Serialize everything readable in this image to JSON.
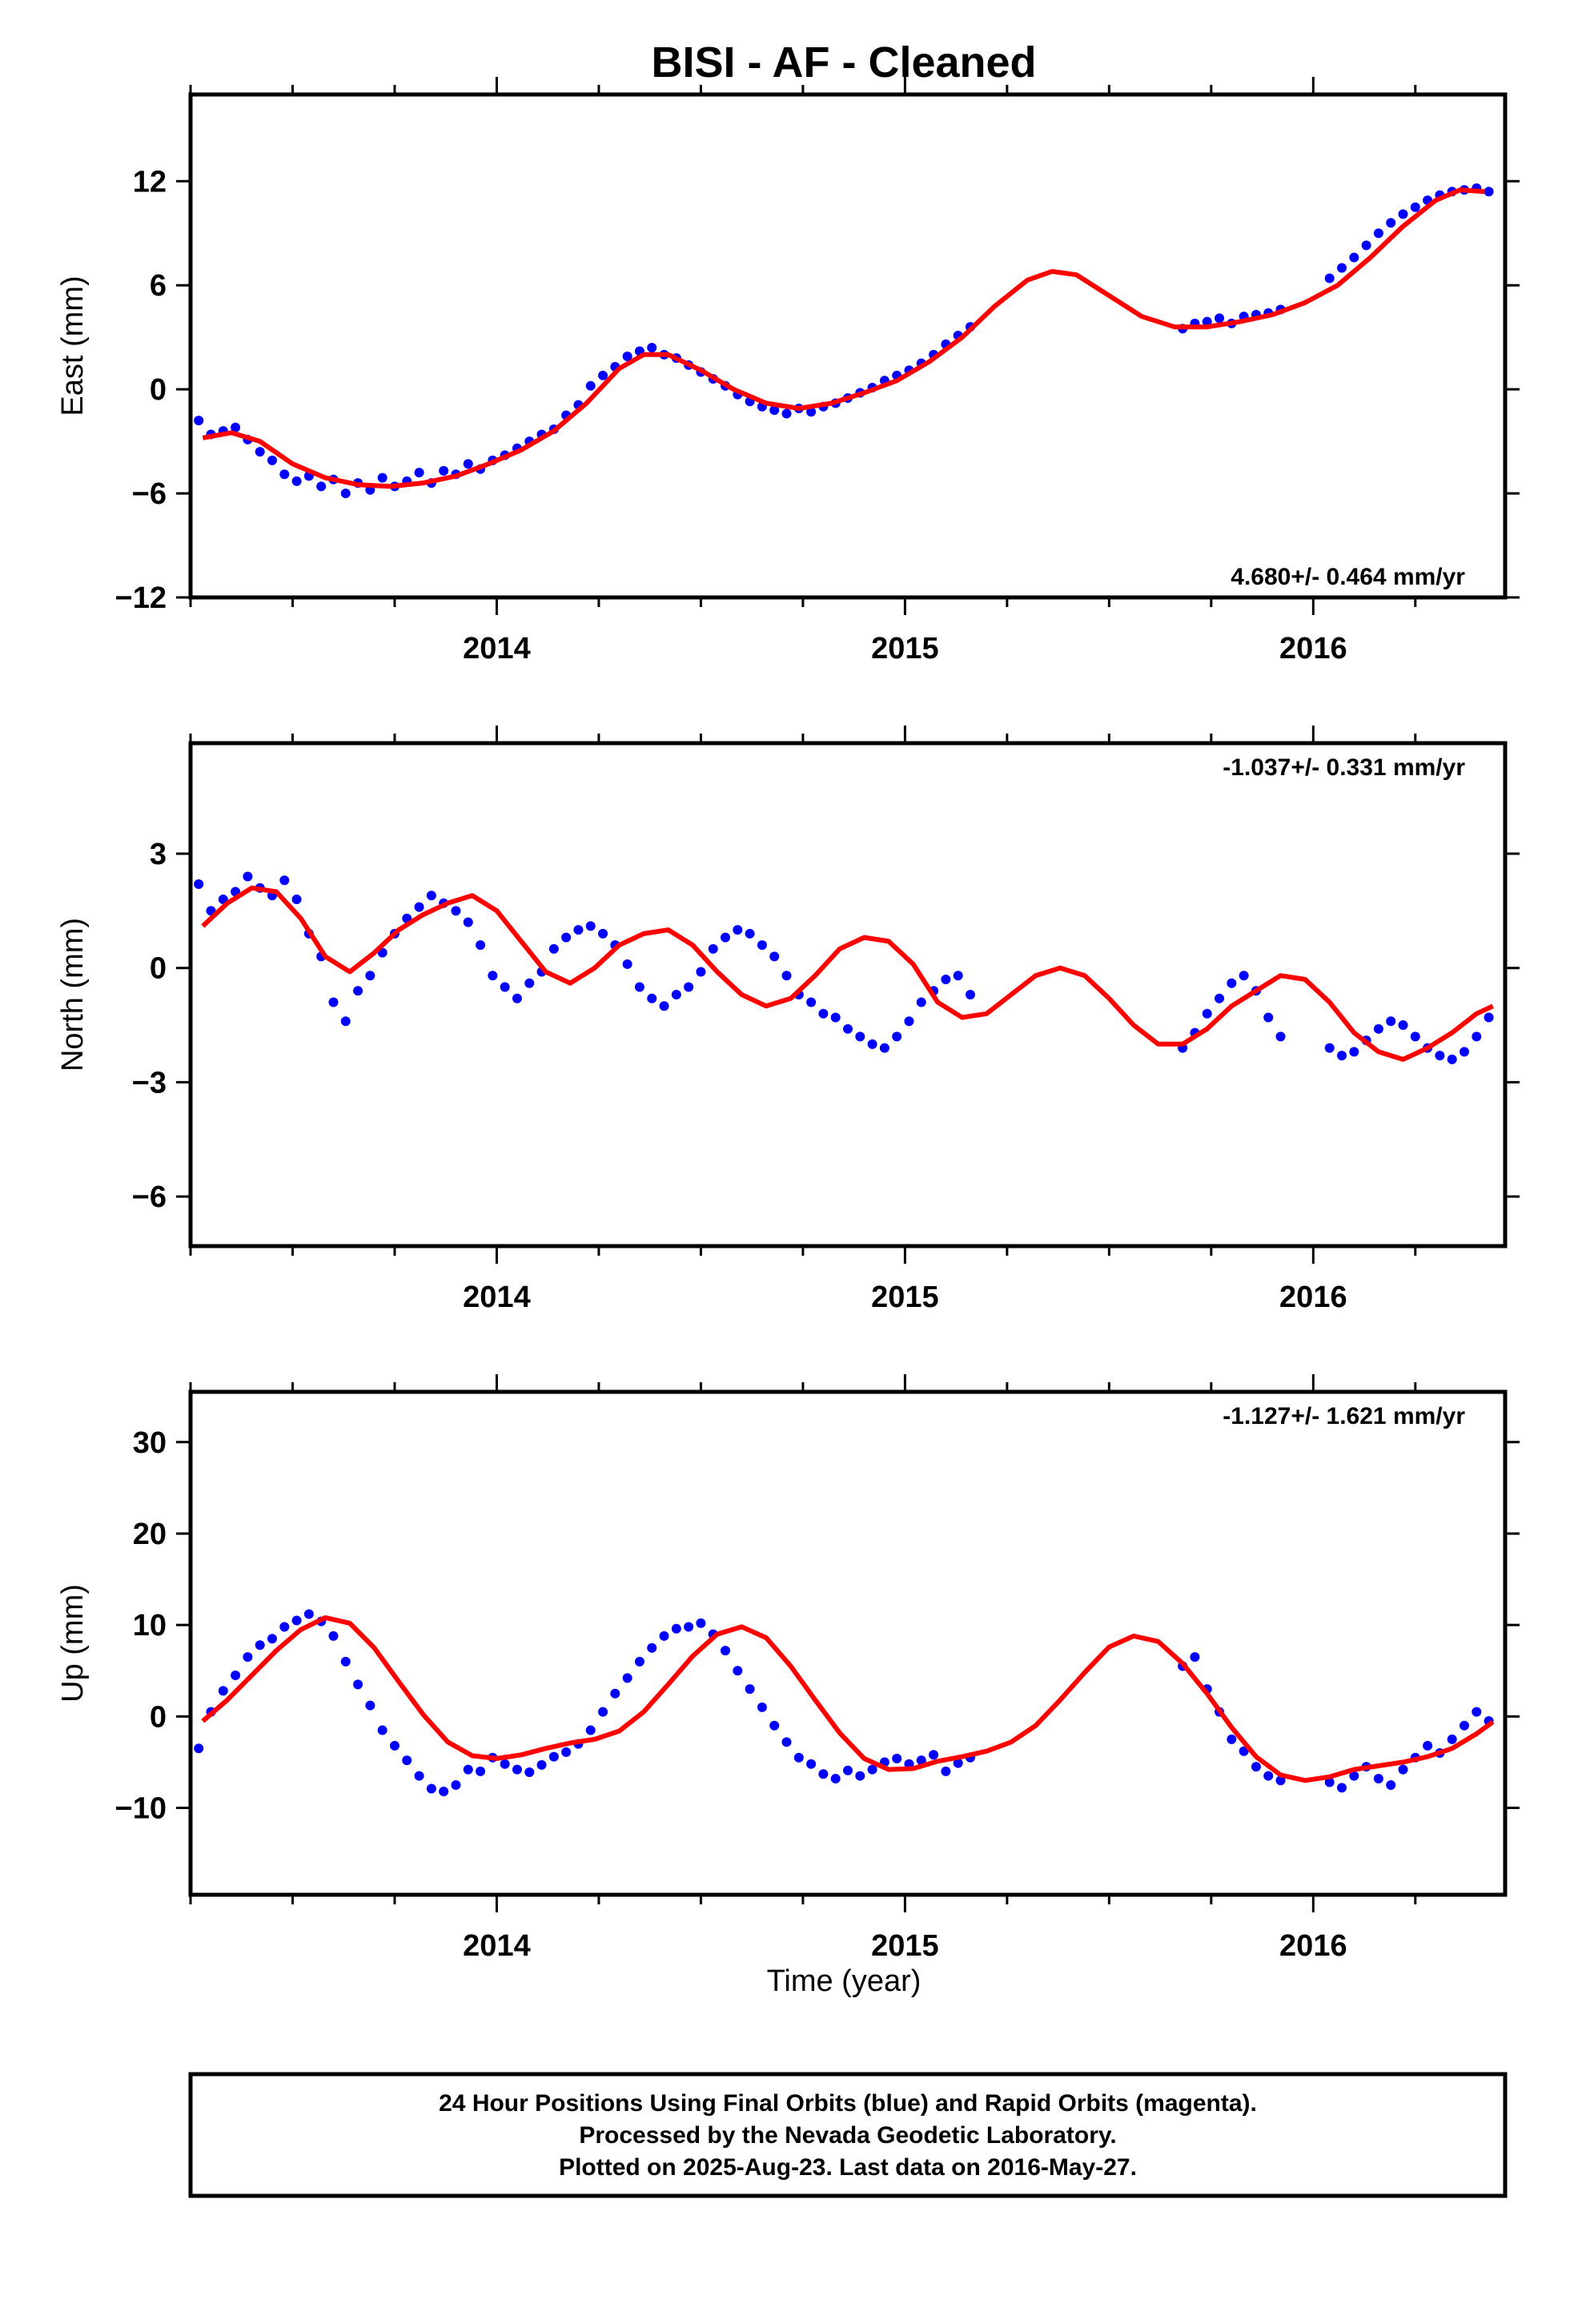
{
  "title": "BISI  - AF - Cleaned",
  "xlabel": "Time (year)",
  "colors": {
    "data": "#0000ff",
    "model": "#ff0000",
    "frame": "#000000"
  },
  "footer": {
    "line1": "24 Hour Positions Using Final Orbits (blue) and Rapid Orbits (magenta).",
    "line2": "Processed by the Nevada Geodetic Laboratory.",
    "line3": "Plotted on 2025-Aug-23. Last data on 2016-May-27."
  },
  "chart_data": [
    {
      "type": "scatter",
      "ylabel": "East (mm)",
      "rate_label": "4.680+/- 0.464 mm/yr",
      "rate_position": "bottom-right",
      "xlim": [
        2013.25,
        2016.47
      ],
      "ylim": [
        -12,
        17
      ],
      "xticks": [
        2014,
        2015,
        2016
      ],
      "yticks": [
        -12,
        -6,
        0,
        6,
        12
      ],
      "grid": false,
      "series": [
        {
          "role": "observations",
          "style": "points",
          "x": [
            2013.27,
            2013.3,
            2013.33,
            2013.36,
            2013.39,
            2013.42,
            2013.45,
            2013.48,
            2013.51,
            2013.54,
            2013.57,
            2013.6,
            2013.63,
            2013.66,
            2013.69,
            2013.72,
            2013.75,
            2013.78,
            2013.81,
            2013.84,
            2013.87,
            2013.9,
            2013.93,
            2013.96,
            2013.99,
            2014.02,
            2014.05,
            2014.08,
            2014.11,
            2014.14,
            2014.17,
            2014.2,
            2014.23,
            2014.26,
            2014.29,
            2014.32,
            2014.35,
            2014.38,
            2014.41,
            2014.44,
            2014.47,
            2014.5,
            2014.53,
            2014.56,
            2014.59,
            2014.62,
            2014.65,
            2014.68,
            2014.71,
            2014.74,
            2014.77,
            2014.8,
            2014.83,
            2014.86,
            2014.89,
            2014.92,
            2014.95,
            2014.98,
            2015.01,
            2015.04,
            2015.07,
            2015.1,
            2015.13,
            2015.16,
            2015.68,
            2015.71,
            2015.74,
            2015.77,
            2015.8,
            2015.83,
            2015.86,
            2015.89,
            2015.92,
            2016.04,
            2016.07,
            2016.1,
            2016.13,
            2016.16,
            2016.19,
            2016.22,
            2016.25,
            2016.28,
            2016.31,
            2016.34,
            2016.37,
            2016.4,
            2016.43
          ],
          "y": [
            -1.8,
            -2.6,
            -2.4,
            -2.2,
            -2.9,
            -3.6,
            -4.1,
            -4.9,
            -5.3,
            -5.0,
            -5.6,
            -5.2,
            -6.0,
            -5.4,
            -5.8,
            -5.1,
            -5.6,
            -5.3,
            -4.8,
            -5.4,
            -4.7,
            -4.9,
            -4.3,
            -4.6,
            -4.1,
            -3.8,
            -3.4,
            -3.0,
            -2.6,
            -2.3,
            -1.5,
            -0.9,
            0.2,
            0.8,
            1.3,
            1.9,
            2.2,
            2.4,
            2.0,
            1.8,
            1.4,
            1.0,
            0.6,
            0.2,
            -0.3,
            -0.7,
            -1.0,
            -1.2,
            -1.4,
            -1.1,
            -1.3,
            -1.0,
            -0.8,
            -0.5,
            -0.2,
            0.1,
            0.5,
            0.8,
            1.1,
            1.5,
            2.0,
            2.6,
            3.1,
            3.6,
            3.5,
            3.8,
            3.9,
            4.1,
            3.8,
            4.2,
            4.3,
            4.4,
            4.6,
            6.4,
            7.0,
            7.6,
            8.3,
            9.0,
            9.6,
            10.1,
            10.5,
            10.9,
            11.2,
            11.4,
            11.5,
            11.6,
            11.4
          ]
        },
        {
          "role": "model",
          "style": "line",
          "x": [
            2013.28,
            2013.35,
            2013.42,
            2013.5,
            2013.58,
            2013.66,
            2013.74,
            2013.82,
            2013.9,
            2013.98,
            2014.06,
            2014.14,
            2014.22,
            2014.3,
            2014.36,
            2014.42,
            2014.5,
            2014.58,
            2014.66,
            2014.74,
            2014.82,
            2014.9,
            2014.98,
            2015.06,
            2015.14,
            2015.22,
            2015.3,
            2015.36,
            2015.42,
            2015.5,
            2015.58,
            2015.66,
            2015.74,
            2015.82,
            2015.9,
            2015.98,
            2016.06,
            2016.14,
            2016.22,
            2016.3,
            2016.36,
            2016.42
          ],
          "y": [
            -2.8,
            -2.5,
            -3.0,
            -4.3,
            -5.1,
            -5.5,
            -5.6,
            -5.4,
            -5.0,
            -4.3,
            -3.5,
            -2.4,
            -0.8,
            1.2,
            2.0,
            2.0,
            1.1,
            0.0,
            -0.8,
            -1.1,
            -0.8,
            -0.2,
            0.5,
            1.6,
            3.0,
            4.8,
            6.3,
            6.8,
            6.6,
            5.4,
            4.2,
            3.6,
            3.6,
            3.9,
            4.3,
            5.0,
            6.0,
            7.6,
            9.4,
            10.9,
            11.5,
            11.4
          ]
        }
      ]
    },
    {
      "type": "scatter",
      "ylabel": "North (mm)",
      "rate_label": "-1.037+/- 0.331 mm/yr",
      "rate_position": "top-right",
      "xlim": [
        2013.25,
        2016.47
      ],
      "ylim": [
        -7.3,
        5.9
      ],
      "xticks": [
        2014,
        2015,
        2016
      ],
      "yticks": [
        -6,
        -3,
        0,
        3
      ],
      "grid": false,
      "series": [
        {
          "role": "observations",
          "style": "points",
          "x": [
            2013.27,
            2013.3,
            2013.33,
            2013.36,
            2013.39,
            2013.42,
            2013.45,
            2013.48,
            2013.51,
            2013.54,
            2013.57,
            2013.6,
            2013.63,
            2013.66,
            2013.69,
            2013.72,
            2013.75,
            2013.78,
            2013.81,
            2013.84,
            2013.87,
            2013.9,
            2013.93,
            2013.96,
            2013.99,
            2014.02,
            2014.05,
            2014.08,
            2014.11,
            2014.14,
            2014.17,
            2014.2,
            2014.23,
            2014.26,
            2014.29,
            2014.32,
            2014.35,
            2014.38,
            2014.41,
            2014.44,
            2014.47,
            2014.5,
            2014.53,
            2014.56,
            2014.59,
            2014.62,
            2014.65,
            2014.68,
            2014.71,
            2014.74,
            2014.77,
            2014.8,
            2014.83,
            2014.86,
            2014.89,
            2014.92,
            2014.95,
            2014.98,
            2015.01,
            2015.04,
            2015.07,
            2015.1,
            2015.13,
            2015.16,
            2015.68,
            2015.71,
            2015.74,
            2015.77,
            2015.8,
            2015.83,
            2015.86,
            2015.89,
            2015.92,
            2016.04,
            2016.07,
            2016.1,
            2016.13,
            2016.16,
            2016.19,
            2016.22,
            2016.25,
            2016.28,
            2016.31,
            2016.34,
            2016.37,
            2016.4,
            2016.43
          ],
          "y": [
            2.2,
            1.5,
            1.8,
            2.0,
            2.4,
            2.1,
            1.9,
            2.3,
            1.8,
            0.9,
            0.3,
            -0.9,
            -1.4,
            -0.6,
            -0.2,
            0.4,
            0.9,
            1.3,
            1.6,
            1.9,
            1.7,
            1.5,
            1.2,
            0.6,
            -0.2,
            -0.5,
            -0.8,
            -0.4,
            -0.1,
            0.5,
            0.8,
            1.0,
            1.1,
            0.9,
            0.6,
            0.1,
            -0.5,
            -0.8,
            -1.0,
            -0.7,
            -0.5,
            -0.1,
            0.5,
            0.8,
            1.0,
            0.9,
            0.6,
            0.3,
            -0.2,
            -0.7,
            -0.9,
            -1.2,
            -1.3,
            -1.6,
            -1.8,
            -2.0,
            -2.1,
            -1.8,
            -1.4,
            -0.9,
            -0.6,
            -0.3,
            -0.2,
            -0.7,
            -2.1,
            -1.7,
            -1.2,
            -0.8,
            -0.4,
            -0.2,
            -0.6,
            -1.3,
            -1.8,
            -2.1,
            -2.3,
            -2.2,
            -1.9,
            -1.6,
            -1.4,
            -1.5,
            -1.8,
            -2.1,
            -2.3,
            -2.4,
            -2.2,
            -1.8,
            -1.3
          ]
        },
        {
          "role": "model",
          "style": "line",
          "x": [
            2013.28,
            2013.34,
            2013.4,
            2013.46,
            2013.52,
            2013.58,
            2013.64,
            2013.7,
            2013.76,
            2013.82,
            2013.88,
            2013.94,
            2014.0,
            2014.06,
            2014.12,
            2014.18,
            2014.24,
            2014.3,
            2014.36,
            2014.42,
            2014.48,
            2014.54,
            2014.6,
            2014.66,
            2014.72,
            2014.78,
            2014.84,
            2014.9,
            2014.96,
            2015.02,
            2015.08,
            2015.14,
            2015.2,
            2015.26,
            2015.32,
            2015.38,
            2015.44,
            2015.5,
            2015.56,
            2015.62,
            2015.68,
            2015.74,
            2015.8,
            2015.86,
            2015.92,
            2015.98,
            2016.04,
            2016.1,
            2016.16,
            2016.22,
            2016.28,
            2016.34,
            2016.4,
            2016.44
          ],
          "y": [
            1.1,
            1.7,
            2.1,
            2.0,
            1.3,
            0.3,
            -0.1,
            0.4,
            1.0,
            1.4,
            1.7,
            1.9,
            1.5,
            0.7,
            -0.1,
            -0.4,
            0.0,
            0.6,
            0.9,
            1.0,
            0.6,
            -0.1,
            -0.7,
            -1.0,
            -0.8,
            -0.2,
            0.5,
            0.8,
            0.7,
            0.1,
            -0.9,
            -1.3,
            -1.2,
            -0.7,
            -0.2,
            0.0,
            -0.2,
            -0.8,
            -1.5,
            -2.0,
            -2.0,
            -1.6,
            -1.0,
            -0.6,
            -0.2,
            -0.3,
            -0.9,
            -1.7,
            -2.2,
            -2.4,
            -2.1,
            -1.7,
            -1.2,
            -1.0
          ]
        }
      ]
    },
    {
      "type": "scatter",
      "ylabel": "Up (mm)",
      "rate_label": "-1.127+/- 1.621 mm/yr",
      "rate_position": "top-right",
      "xlim": [
        2013.25,
        2016.47
      ],
      "ylim": [
        -19.5,
        35.5
      ],
      "xticks": [
        2014,
        2015,
        2016
      ],
      "yticks": [
        -10,
        0,
        10,
        20,
        30
      ],
      "grid": false,
      "series": [
        {
          "role": "observations",
          "style": "points",
          "x": [
            2013.27,
            2013.3,
            2013.33,
            2013.36,
            2013.39,
            2013.42,
            2013.45,
            2013.48,
            2013.51,
            2013.54,
            2013.57,
            2013.6,
            2013.63,
            2013.66,
            2013.69,
            2013.72,
            2013.75,
            2013.78,
            2013.81,
            2013.84,
            2013.87,
            2013.9,
            2013.93,
            2013.96,
            2013.99,
            2014.02,
            2014.05,
            2014.08,
            2014.11,
            2014.14,
            2014.17,
            2014.2,
            2014.23,
            2014.26,
            2014.29,
            2014.32,
            2014.35,
            2014.38,
            2014.41,
            2014.44,
            2014.47,
            2014.5,
            2014.53,
            2014.56,
            2014.59,
            2014.62,
            2014.65,
            2014.68,
            2014.71,
            2014.74,
            2014.77,
            2014.8,
            2014.83,
            2014.86,
            2014.89,
            2014.92,
            2014.95,
            2014.98,
            2015.01,
            2015.04,
            2015.07,
            2015.1,
            2015.13,
            2015.16,
            2015.68,
            2015.71,
            2015.74,
            2015.77,
            2015.8,
            2015.83,
            2015.86,
            2015.89,
            2015.92,
            2016.04,
            2016.07,
            2016.1,
            2016.13,
            2016.16,
            2016.19,
            2016.22,
            2016.25,
            2016.28,
            2016.31,
            2016.34,
            2016.37,
            2016.4,
            2016.43
          ],
          "y": [
            -3.5,
            0.5,
            2.8,
            4.5,
            6.5,
            7.8,
            8.5,
            9.8,
            10.5,
            11.2,
            10.4,
            8.8,
            6.0,
            3.5,
            1.2,
            -1.5,
            -3.2,
            -4.8,
            -6.5,
            -7.9,
            -8.2,
            -7.5,
            -5.8,
            -6.0,
            -4.5,
            -5.2,
            -5.8,
            -6.1,
            -5.3,
            -4.4,
            -3.9,
            -3.0,
            -1.5,
            0.5,
            2.5,
            4.2,
            6.0,
            7.5,
            8.8,
            9.6,
            9.8,
            10.2,
            9.0,
            7.2,
            5.0,
            3.0,
            1.0,
            -1.0,
            -2.8,
            -4.5,
            -5.2,
            -6.3,
            -6.8,
            -5.9,
            -6.5,
            -5.8,
            -5.0,
            -4.6,
            -5.2,
            -4.8,
            -4.2,
            -6.0,
            -5.1,
            -4.5,
            5.5,
            6.5,
            3.0,
            0.5,
            -2.5,
            -3.8,
            -5.5,
            -6.5,
            -7.0,
            -7.2,
            -7.8,
            -6.5,
            -5.5,
            -6.8,
            -7.5,
            -5.8,
            -4.5,
            -3.2,
            -4.0,
            -2.5,
            -1.0,
            0.5,
            -0.5
          ]
        },
        {
          "role": "model",
          "style": "line",
          "x": [
            2013.28,
            2013.34,
            2013.4,
            2013.46,
            2013.52,
            2013.58,
            2013.64,
            2013.7,
            2013.76,
            2013.82,
            2013.88,
            2013.94,
            2014.0,
            2014.06,
            2014.12,
            2014.18,
            2014.24,
            2014.3,
            2014.36,
            2014.42,
            2014.48,
            2014.54,
            2014.6,
            2014.66,
            2014.72,
            2014.78,
            2014.84,
            2014.9,
            2014.96,
            2015.02,
            2015.08,
            2015.14,
            2015.2,
            2015.26,
            2015.32,
            2015.38,
            2015.44,
            2015.5,
            2015.56,
            2015.62,
            2015.68,
            2015.74,
            2015.8,
            2015.86,
            2015.92,
            2015.98,
            2016.04,
            2016.1,
            2016.16,
            2016.22,
            2016.28,
            2016.34,
            2016.4,
            2016.44
          ],
          "y": [
            -0.5,
            1.8,
            4.5,
            7.2,
            9.5,
            10.8,
            10.2,
            7.5,
            3.8,
            0.2,
            -2.8,
            -4.3,
            -4.6,
            -4.2,
            -3.5,
            -2.9,
            -2.5,
            -1.6,
            0.5,
            3.5,
            6.6,
            9.0,
            9.8,
            8.6,
            5.5,
            1.8,
            -1.8,
            -4.6,
            -5.8,
            -5.7,
            -4.9,
            -4.4,
            -3.8,
            -2.8,
            -1.0,
            1.8,
            4.8,
            7.6,
            8.8,
            8.2,
            5.8,
            2.5,
            -1.2,
            -4.4,
            -6.4,
            -7.0,
            -6.6,
            -5.8,
            -5.4,
            -5.0,
            -4.4,
            -3.5,
            -1.9,
            -0.6
          ]
        }
      ]
    }
  ]
}
